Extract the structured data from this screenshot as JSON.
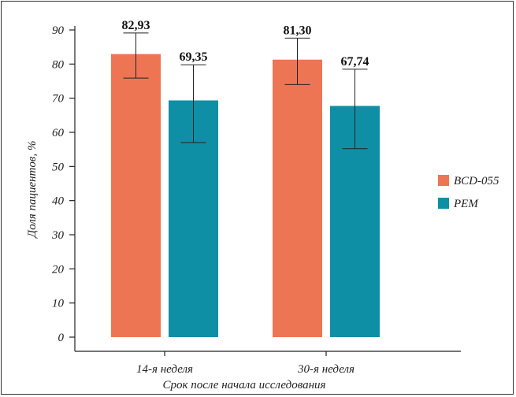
{
  "chart_data": {
    "type": "bar",
    "categories": [
      "14-я неделя",
      "30-я неделя"
    ],
    "series": [
      {
        "name": "BCD-055",
        "color": "#ee7553",
        "values": [
          82.93,
          81.3
        ],
        "value_labels": [
          "82,93",
          "81,30"
        ],
        "error_low": [
          75.9,
          74.0
        ],
        "error_high": [
          89.1,
          87.6
        ]
      },
      {
        "name": "PEM",
        "color": "#0f8fa6",
        "values": [
          69.35,
          67.74
        ],
        "value_labels": [
          "69,35",
          "67,74"
        ],
        "error_low": [
          57.0,
          55.2
        ],
        "error_high": [
          79.8,
          78.5
        ]
      }
    ],
    "title": "",
    "xlabel": "Срок после начала исследования",
    "ylabel": "Доля пациентов, %",
    "ylim": [
      0,
      90
    ],
    "yticks": [
      0,
      10,
      20,
      30,
      40,
      50,
      60,
      70,
      80,
      90
    ],
    "grid": false,
    "legend_position": "right"
  }
}
